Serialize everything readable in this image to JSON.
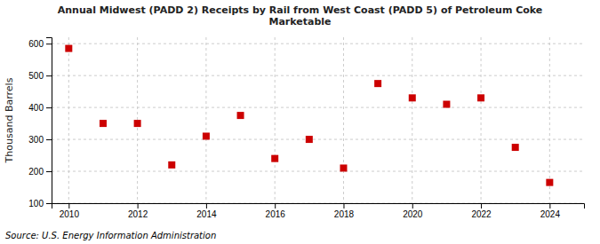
{
  "chart_data": {
    "type": "scatter",
    "title": "Annual Midwest (PADD 2) Receipts by Rail from West Coast (PADD 5) of Petroleum Coke\nMarketable",
    "y_label": "Thousand Barrels",
    "source": "Source: U.S. Energy Information Administration",
    "x": [
      2010,
      2011,
      2012,
      2013,
      2014,
      2015,
      2016,
      2017,
      2018,
      2019,
      2020,
      2021,
      2022,
      2023,
      2024
    ],
    "values": [
      585,
      350,
      350,
      220,
      310,
      375,
      240,
      300,
      210,
      475,
      430,
      410,
      430,
      275,
      165
    ],
    "color": "#cc0000",
    "marker": "square",
    "xlim": [
      2009.5,
      2025.0
    ],
    "ylim": [
      100,
      620
    ],
    "xticks": [
      2010,
      2012,
      2014,
      2016,
      2018,
      2020,
      2022,
      2024
    ],
    "yticks": [
      100,
      200,
      300,
      400,
      500,
      600
    ],
    "grid": true
  }
}
